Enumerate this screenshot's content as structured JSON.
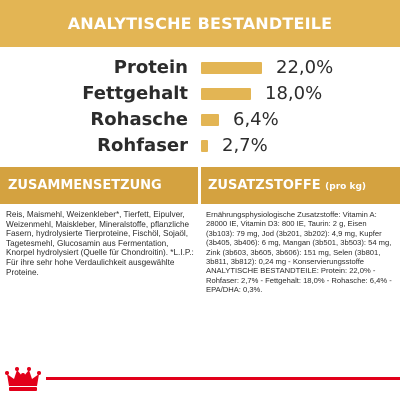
{
  "header": {
    "title": "ANALYTISCHE BESTANDTEILE"
  },
  "nutrients": [
    {
      "label": "Protein",
      "value_text": "22,0%",
      "value": 22.0
    },
    {
      "label": "Fettgehalt",
      "value_text": "18,0%",
      "value": 18.0
    },
    {
      "label": "Rohasche",
      "value_text": "6,4%",
      "value": 6.4
    },
    {
      "label": "Rohfaser",
      "value_text": "2,7%",
      "value": 2.7
    }
  ],
  "composition": {
    "title": "ZUSAMMENSETZUNG",
    "text": "Reis, Maismehl, Weizenkleber*, Tierfett, Eipulver, Weizenmehl, Maiskleber, Mineralstoffe, pflanzliche Fasern, hydrolysierte Tierproteine, Fischöl, Sojaöl, Tagetesmehl, Glucosamin aus Fermentation, Knorpel hydrolysiert (Quelle für Chondroitin). *L.I.P.: Für ihre sehr hohe Verdaulichkeit ausgewählte Proteine."
  },
  "additives": {
    "title": "ZUSATZSTOFFE",
    "title_suffix": "(pro kg)",
    "lines": [
      "Ernährungsphysiologische Zusatzstoffe: Vitamin A: 28000 IE, Vitamin D3: 800 IE, Taurin: 2 g, Eisen (3b103): 79 mg, Jod (3b201, 3b202): 4,9 mg, Kupfer (3b405, 3b406): 6 mg, Mangan (3b501, 3b503): 54 mg, Zink (3b603, 3b605, 3b606): 151 mg, Selen (3b801, 3b811, 3b812): 0,24 mg - Konservierungsstoffe",
      "ANALYTISCHE BESTANDTEILE: Protein: 22,0% - Rohfaser: 2,7% - Fettgehalt: 18,0% - Rohasche: 6,4% - EPA/DHA: 0,3%."
    ]
  },
  "colors": {
    "gold": "#e3b554",
    "band": "#d4a240",
    "red": "#e2001a",
    "text": "#2c2c2c"
  },
  "logo": {
    "icon": "royal-canin-crown-icon"
  }
}
